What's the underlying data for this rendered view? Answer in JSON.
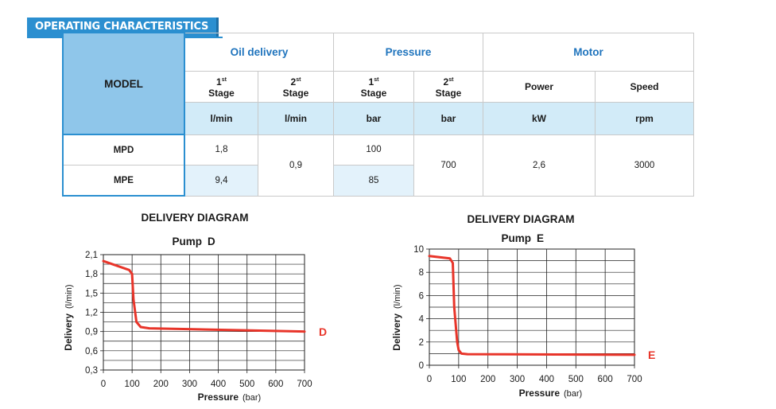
{
  "header": {
    "title": "OPERATING CHARACTERISTICS"
  },
  "table": {
    "model_label": "MODEL",
    "groups": {
      "oil_delivery": "Oil delivery",
      "pressure": "Pressure",
      "motor": "Motor"
    },
    "sub": {
      "stage1_num": "1",
      "stage1_sup": "st",
      "stage2_num": "2",
      "stage2_sup": "st",
      "stage_word": "Stage",
      "power": "Power",
      "speed": "Speed"
    },
    "units": {
      "oil1": "l/min",
      "oil2": "l/min",
      "p1": "bar",
      "p2": "bar",
      "power": "kW",
      "speed": "rpm"
    },
    "rows": [
      {
        "model": "MPD",
        "oil1": "1,8",
        "p1": "100"
      },
      {
        "model": "MPE",
        "oil1": "9,4",
        "p1": "85"
      }
    ],
    "shared": {
      "oil2": "0,9",
      "p2": "700",
      "power": "2,6",
      "speed": "3000"
    }
  },
  "colors": {
    "accent": "#2b8fd0",
    "header_fill": "#8fc6ea",
    "unit_fill": "#d2ebf8",
    "curve": "#e8352a"
  },
  "chart_data": [
    {
      "type": "line",
      "title": "DELIVERY DIAGRAM",
      "subtitle_word": "Pump",
      "subtitle_letter": "D",
      "xlabel": "Pressure",
      "xunit": "(bar)",
      "ylabel": "Delivery",
      "yunit": "(l/min)",
      "xlim": [
        0,
        700
      ],
      "ylim": [
        0.3,
        2.1
      ],
      "xticks": [
        0,
        100,
        200,
        300,
        400,
        500,
        600,
        700
      ],
      "yticks": [
        0.3,
        0.6,
        0.9,
        1.2,
        1.5,
        1.8,
        2.1
      ],
      "ytick_labels": [
        "0,3",
        "0,6",
        "0,9",
        "1,2",
        "1,5",
        "1,8",
        "2,1"
      ],
      "grid": true,
      "series": [
        {
          "name": "D",
          "x": [
            0,
            90,
            100,
            105,
            115,
            130,
            160,
            700
          ],
          "y": [
            2.0,
            1.86,
            1.8,
            1.4,
            1.05,
            0.97,
            0.95,
            0.9
          ]
        }
      ]
    },
    {
      "type": "line",
      "title": "DELIVERY DIAGRAM",
      "subtitle_word": "Pump",
      "subtitle_letter": "E",
      "xlabel": "Pressure",
      "xunit": "(bar)",
      "ylabel": "Delivery",
      "yunit": "(l/min)",
      "xlim": [
        0,
        700
      ],
      "ylim": [
        0,
        10
      ],
      "xticks": [
        0,
        100,
        200,
        300,
        400,
        500,
        600,
        700
      ],
      "yticks": [
        0,
        2,
        4,
        6,
        8,
        10
      ],
      "ytick_labels": [
        "0",
        "2",
        "4",
        "6",
        "8",
        "10"
      ],
      "grid": true,
      "series": [
        {
          "name": "E",
          "x": [
            0,
            70,
            80,
            85,
            95,
            100,
            110,
            130,
            700
          ],
          "y": [
            9.4,
            9.2,
            8.8,
            5.0,
            2.0,
            1.3,
            1.0,
            0.95,
            0.9
          ]
        }
      ]
    }
  ]
}
